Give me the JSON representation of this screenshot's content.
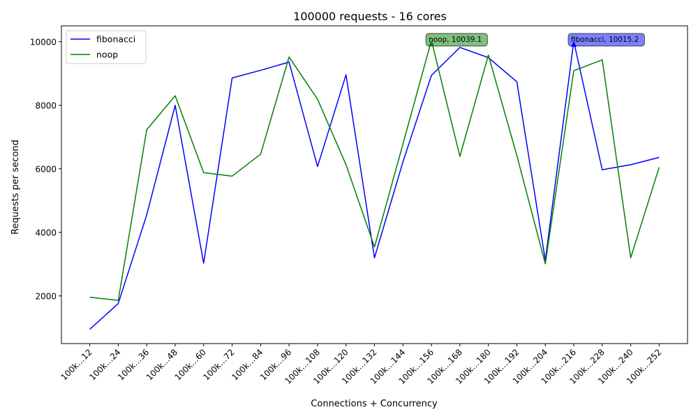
{
  "chart_data": {
    "type": "line",
    "title": "100000 requests - 16 cores",
    "xlabel": "Connections + Concurrency",
    "ylabel": "Requests per second",
    "categories": [
      "100k…12",
      "100k…24",
      "100k…36",
      "100k…48",
      "100k…60",
      "100k…72",
      "100k…84",
      "100k…96",
      "100k…108",
      "100k…120",
      "100k…132",
      "100k…144",
      "100k…156",
      "100k…168",
      "100k…180",
      "100k…192",
      "100k…204",
      "100k…216",
      "100k…228",
      "100k…240",
      "100k…252"
    ],
    "ylim": [
      500,
      10500
    ],
    "yticks": [
      2000,
      4000,
      6000,
      8000,
      10000
    ],
    "grid": false,
    "legend_position": "top-left",
    "series": [
      {
        "name": "fibonacci",
        "color": "#0000ff",
        "values": [
          950,
          1760,
          4550,
          8000,
          3030,
          8860,
          9100,
          9360,
          6070,
          8960,
          3200,
          6220,
          8940,
          9820,
          9500,
          8740,
          3120,
          10015.2,
          5970,
          6130,
          6360
        ]
      },
      {
        "name": "noop",
        "color": "#008000",
        "values": [
          1960,
          1860,
          7230,
          8300,
          5880,
          5770,
          6460,
          9520,
          8190,
          6130,
          3540,
          6780,
          10039.1,
          6390,
          9580,
          6420,
          3010,
          9090,
          9430,
          3200,
          6050
        ]
      }
    ],
    "annotations": [
      {
        "text": "noop, 10039.1",
        "series": "noop",
        "index": 12,
        "color": "#008000",
        "box_color": "#7fbf7f"
      },
      {
        "text": "fibonacci, 10015.2",
        "series": "fibonacci",
        "index": 17,
        "color": "#0000ff",
        "box_color": "#7f7fff"
      }
    ]
  }
}
